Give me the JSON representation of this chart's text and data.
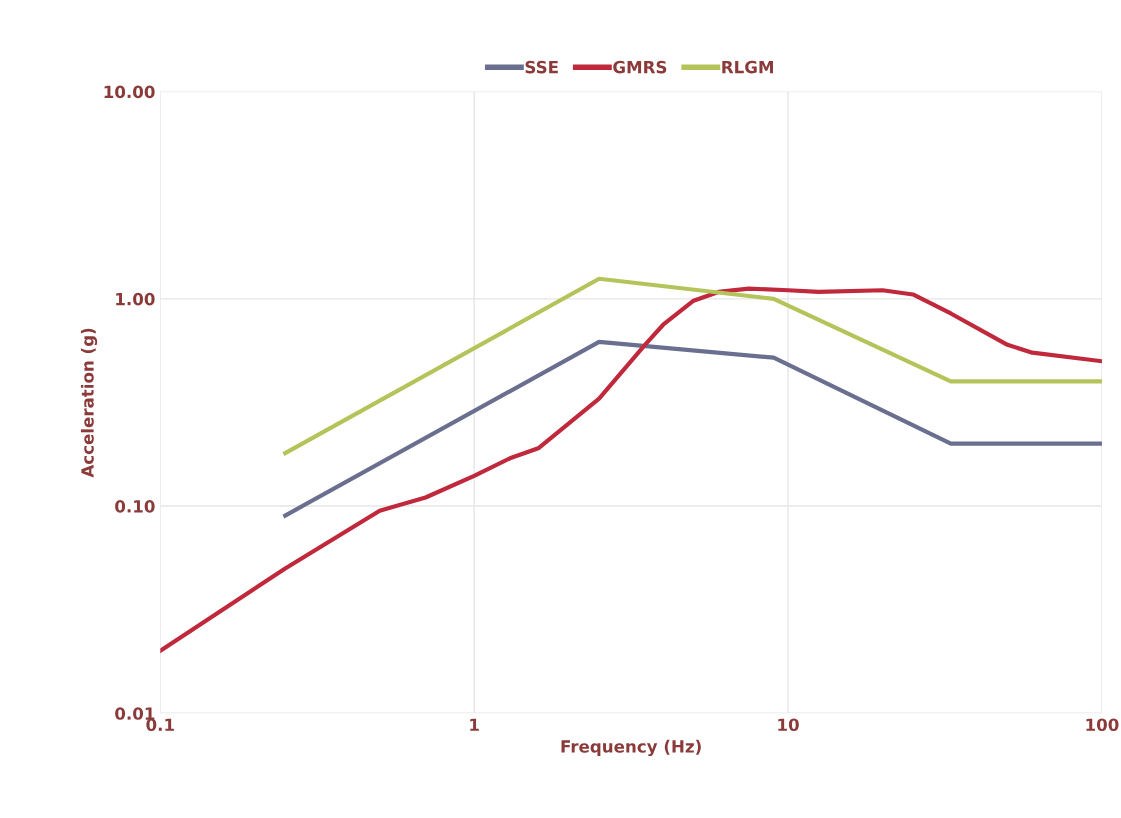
{
  "chart_data": {
    "type": "line",
    "xlabel": "Frequency (Hz)",
    "ylabel": "Acceleration (g)",
    "log": "xy",
    "grid": true,
    "legend": "top",
    "marker": "none",
    "line_style": "solid",
    "xlim": [
      0.1,
      100
    ],
    "xticks": [
      {
        "value": 0.1,
        "label": "0.1"
      },
      1,
      10,
      100
    ],
    "ylim": [
      0.01,
      10
    ],
    "yticks": [
      {
        "value": 0.01,
        "label": "0.01"
      },
      {
        "value": 0.1,
        "label": "0.10"
      },
      {
        "value": 1,
        "label": "1.00"
      },
      {
        "value": 10,
        "label": "10.00"
      }
    ],
    "series": [
      {
        "name": "SSE",
        "color": "#6a6f90",
        "x": [
          0.25,
          2.5,
          9,
          33,
          100
        ],
        "values": [
          0.09,
          0.62,
          0.52,
          0.2,
          0.2
        ]
      },
      {
        "name": "GMRS",
        "color": "#c0283c",
        "x": [
          0.1,
          0.25,
          0.5,
          0.7,
          1,
          1.3,
          1.6,
          2.5,
          3.5,
          4,
          5,
          6,
          7.5,
          10,
          12.5,
          20,
          25,
          33,
          50,
          60,
          100
        ],
        "values": [
          0.02,
          0.05,
          0.095,
          0.11,
          0.14,
          0.17,
          0.19,
          0.33,
          0.6,
          0.75,
          0.98,
          1.08,
          1.12,
          1.1,
          1.08,
          1.1,
          1.05,
          0.85,
          0.6,
          0.55,
          0.5
        ]
      },
      {
        "name": "RLGM",
        "color": "#b5c45a",
        "x": [
          0.25,
          2.5,
          9,
          33,
          100
        ],
        "values": [
          0.18,
          1.25,
          1.0,
          0.4,
          0.4
        ]
      }
    ]
  }
}
